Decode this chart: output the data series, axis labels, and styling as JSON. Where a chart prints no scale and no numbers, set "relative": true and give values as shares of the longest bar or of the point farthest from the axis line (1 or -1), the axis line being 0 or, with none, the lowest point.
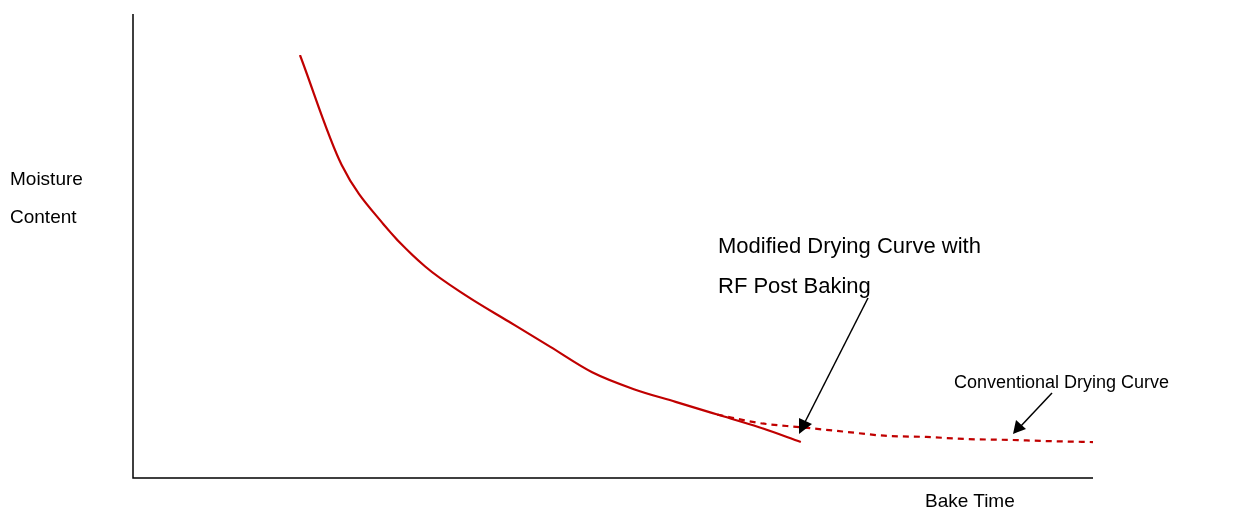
{
  "chart_data": {
    "type": "line",
    "relative": true,
    "xlabel": "Bake Time",
    "ylabel": "Moisture Content",
    "marker": "none",
    "legend": false,
    "categories": [
      null,
      null,
      null,
      null,
      null,
      null,
      null,
      null,
      null,
      null,
      null,
      null,
      null,
      null,
      null,
      null,
      null,
      null,
      null,
      null,
      null,
      null,
      null,
      null
    ],
    "series": [
      {
        "color": "#c00000",
        "line_style": "solid",
        "values": [
          null,
          null,
          null,
          null,
          1.0,
          0.74,
          0.6,
          0.5,
          0.43,
          0.37,
          0.31,
          0.25,
          0.21,
          0.18,
          0.15,
          0.12,
          0.085,
          null,
          null,
          null,
          null,
          null,
          null,
          null
        ]
      },
      {
        "color": "#c00000",
        "line_style": "dashed",
        "values": [
          null,
          null,
          null,
          null,
          null,
          null,
          null,
          null,
          null,
          null,
          null,
          null,
          null,
          null,
          0.15,
          0.13,
          0.12,
          0.11,
          0.1,
          0.097,
          0.092,
          0.09,
          0.087,
          0.085
        ]
      }
    ],
    "annotations": [
      "Modified Drying Curve with RF Post Baking",
      "Conventional Drying Curve"
    ]
  }
}
